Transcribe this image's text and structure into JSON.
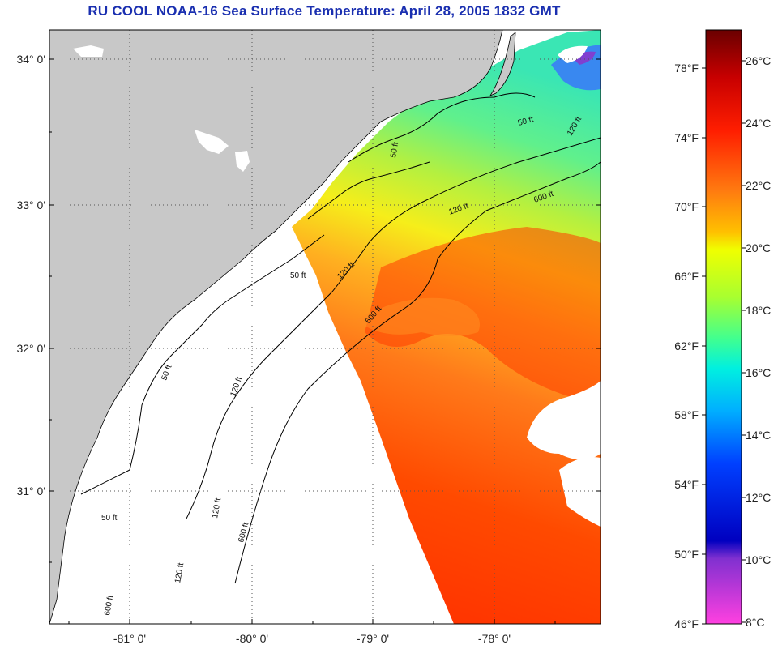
{
  "title": "RU COOL  NOAA-16  Sea Surface Temperature:  April 28, 2005 1832 GMT",
  "map": {
    "lat_labels": [
      "34° 0'",
      "33° 0'",
      "32° 0'",
      "31° 0'"
    ],
    "lon_labels": [
      "-81° 0'",
      "-80° 0'",
      "-79° 0'",
      "-78° 0'"
    ],
    "contour_labels": [
      "50 ft",
      "120 ft",
      "600 ft",
      "50 ft",
      "120 ft",
      "120 ft",
      "600 ft",
      "50 ft",
      "120 ft",
      "600 ft",
      "50 ft",
      "120 ft",
      "120 ft",
      "50 ft",
      "600 ft"
    ],
    "colors": {
      "land": "#c8c8c8",
      "ocean_nodata": "#ffffff",
      "cloud": "#ffffff",
      "frame": "#000000",
      "grid": "#555555"
    }
  },
  "colorbar": {
    "fahrenheit_labels": [
      "78°F",
      "74°F",
      "70°F",
      "66°F",
      "62°F",
      "58°F",
      "54°F",
      "50°F",
      "46°F"
    ],
    "celsius_labels": [
      "26°C",
      "24°C",
      "22°C",
      "20°C",
      "18°C",
      "16°C",
      "14°C",
      "12°C",
      "10°C",
      "8°C"
    ],
    "stops": [
      "#6a0000",
      "#c80000",
      "#ff2800",
      "#ff7a10",
      "#ffc000",
      "#f0ff00",
      "#a8ff30",
      "#40ff90",
      "#00f0e0",
      "#00b0ff",
      "#0040ff",
      "#0000c0",
      "#8030d0",
      "#ff40e0"
    ]
  }
}
